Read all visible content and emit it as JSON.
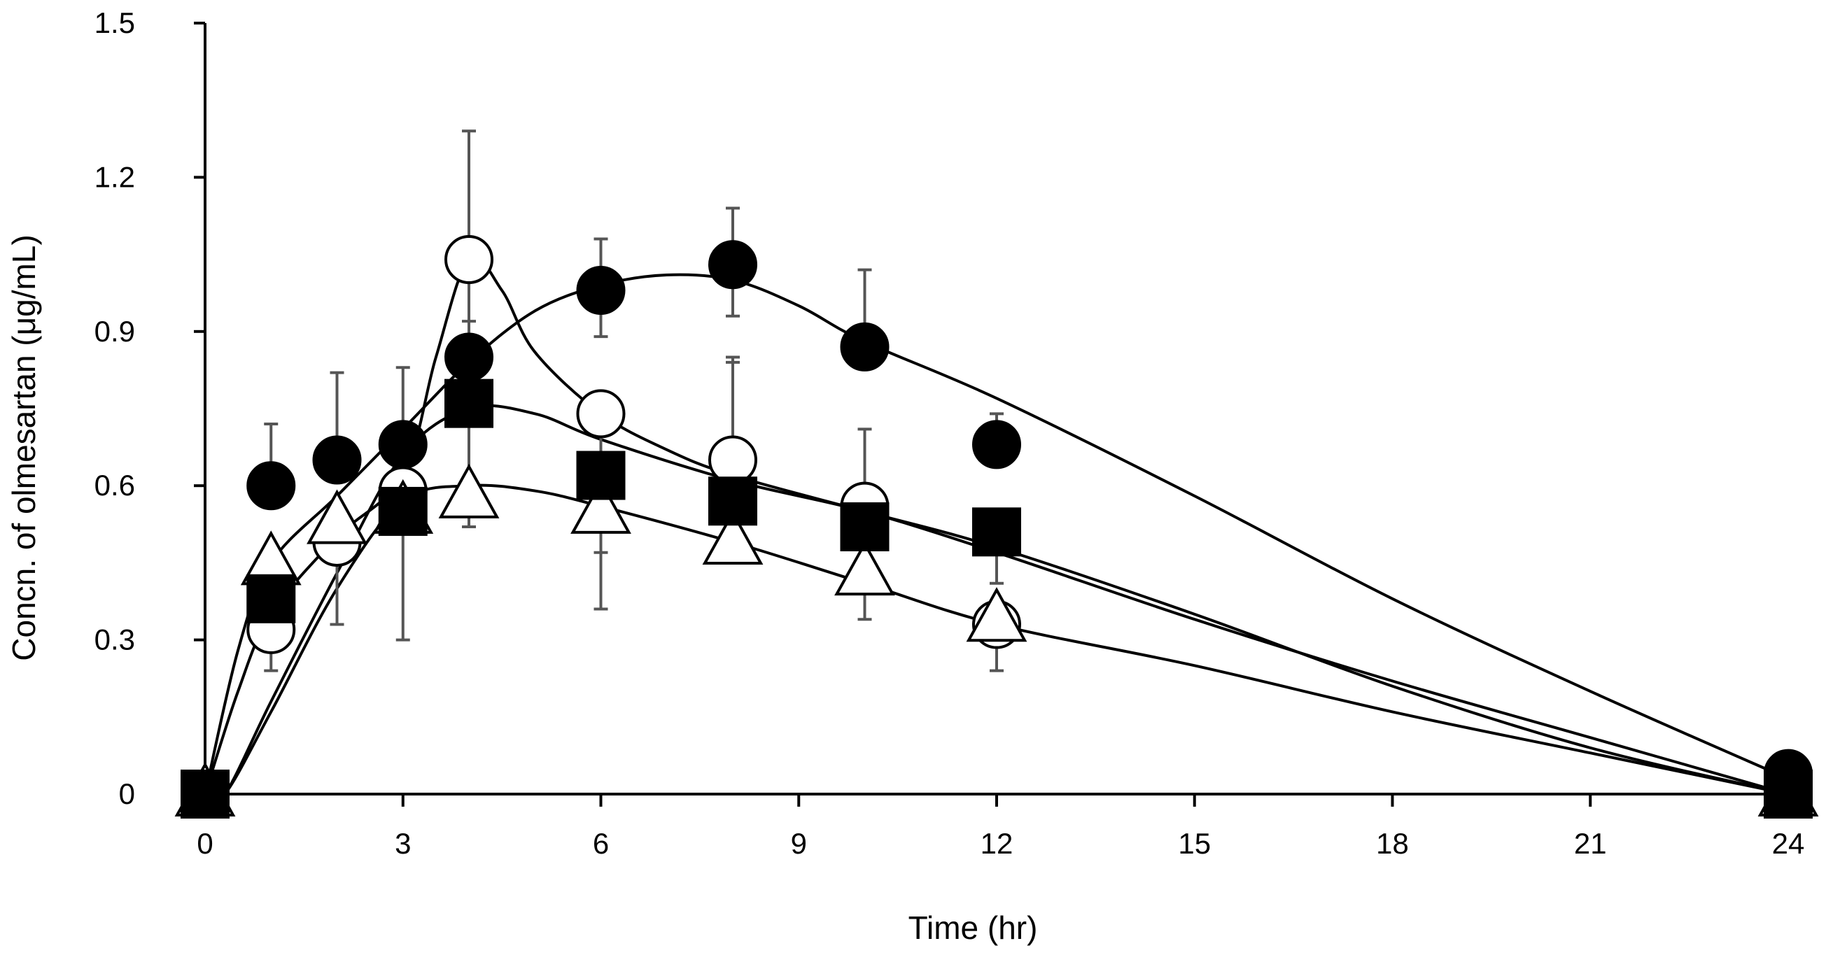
{
  "chart_data": {
    "type": "scatter",
    "title": "",
    "xlabel": "Time (hr)",
    "ylabel": "Concn. of olmesartan (μg/mL)",
    "xlim": [
      0,
      24
    ],
    "ylim": [
      0,
      1.5
    ],
    "x_ticks": [
      0,
      3,
      6,
      9,
      12,
      15,
      18,
      21,
      24
    ],
    "x_tick_labels": [
      "0",
      "3",
      "6",
      "9",
      "12",
      "15",
      "18",
      "21",
      "24"
    ],
    "y_ticks": [
      0,
      0.3,
      0.6,
      0.9,
      1.2,
      1.5
    ],
    "y_tick_labels": [
      "0",
      "0.3",
      "0.6",
      "0.9",
      "1.2",
      "1.5"
    ],
    "grid": false,
    "series": [
      {
        "name": "filled-circle",
        "marker": "circle",
        "fill": "#000000",
        "x": [
          0,
          1,
          2,
          3,
          4,
          6,
          8,
          10,
          12,
          24
        ],
        "y": [
          0,
          0.6,
          0.65,
          0.68,
          0.85,
          0.98,
          1.03,
          0.87,
          0.68,
          0.04
        ],
        "error_upper": [
          null,
          0.72,
          0.82,
          0.83,
          0.92,
          1.08,
          1.14,
          1.02,
          0.74,
          null
        ],
        "error_lower": [
          null,
          null,
          null,
          null,
          null,
          0.89,
          0.93,
          null,
          null,
          null
        ],
        "fit_curve": [
          [
            0,
            0
          ],
          [
            0.5,
            0.28
          ],
          [
            1,
            0.45
          ],
          [
            2,
            0.58
          ],
          [
            3,
            0.71
          ],
          [
            4,
            0.84
          ],
          [
            5,
            0.94
          ],
          [
            6,
            0.99
          ],
          [
            7,
            1.01
          ],
          [
            8,
            1.0
          ],
          [
            9,
            0.95
          ],
          [
            10,
            0.88
          ],
          [
            12,
            0.77
          ],
          [
            15,
            0.58
          ],
          [
            18,
            0.38
          ],
          [
            21,
            0.2
          ],
          [
            24,
            0.03
          ]
        ]
      },
      {
        "name": "open-circle",
        "marker": "circle",
        "fill": "#ffffff",
        "x": [
          0,
          1,
          2,
          3,
          4,
          6,
          8,
          10,
          12,
          24
        ],
        "y": [
          0,
          0.32,
          0.49,
          0.59,
          1.04,
          0.74,
          0.65,
          0.56,
          0.33,
          0.0
        ],
        "error_upper": [
          null,
          null,
          null,
          null,
          1.29,
          null,
          0.85,
          null,
          null,
          null
        ],
        "error_lower": [
          null,
          0.24,
          0.33,
          null,
          0.52,
          0.47,
          null,
          0.34,
          0.24,
          null
        ],
        "fit_curve": [
          [
            0,
            0
          ],
          [
            0.5,
            0.2
          ],
          [
            1,
            0.35
          ],
          [
            2,
            0.5
          ],
          [
            3,
            0.62
          ],
          [
            3.5,
            0.85
          ],
          [
            4,
            1.04
          ],
          [
            4.5,
            0.98
          ],
          [
            5,
            0.86
          ],
          [
            6,
            0.74
          ],
          [
            7,
            0.67
          ],
          [
            8,
            0.62
          ],
          [
            10,
            0.55
          ],
          [
            12,
            0.48
          ],
          [
            15,
            0.35
          ],
          [
            18,
            0.21
          ],
          [
            21,
            0.09
          ],
          [
            24,
            0.0
          ]
        ]
      },
      {
        "name": "filled-square",
        "marker": "square",
        "fill": "#000000",
        "x": [
          0,
          1,
          3,
          4,
          6,
          8,
          10,
          12,
          24
        ],
        "y": [
          0,
          0.38,
          0.55,
          0.76,
          0.62,
          0.57,
          0.52,
          0.51,
          0.0
        ],
        "error_upper": [
          null,
          null,
          null,
          0.85,
          null,
          0.84,
          0.71,
          null,
          null
        ],
        "error_lower": [
          null,
          null,
          0.3,
          null,
          0.36,
          null,
          null,
          0.41,
          null
        ],
        "fit_curve": [
          [
            0,
            0
          ],
          [
            0.3,
            0.0
          ],
          [
            1,
            0.18
          ],
          [
            2,
            0.43
          ],
          [
            3,
            0.66
          ],
          [
            4,
            0.75
          ],
          [
            5,
            0.74
          ],
          [
            6,
            0.69
          ],
          [
            8,
            0.61
          ],
          [
            10,
            0.55
          ],
          [
            12,
            0.47
          ],
          [
            15,
            0.34
          ],
          [
            18,
            0.22
          ],
          [
            21,
            0.11
          ],
          [
            24,
            0.0
          ]
        ]
      },
      {
        "name": "open-triangle",
        "marker": "triangle",
        "fill": "#ffffff",
        "x": [
          0,
          1,
          2,
          3,
          4,
          6,
          8,
          10,
          12,
          24
        ],
        "y": [
          0,
          0.45,
          0.53,
          0.55,
          0.58,
          0.55,
          0.49,
          0.43,
          0.34,
          0.0
        ],
        "error_upper": [
          null,
          null,
          null,
          null,
          null,
          null,
          null,
          null,
          null,
          null
        ],
        "error_lower": [
          null,
          null,
          null,
          null,
          null,
          null,
          null,
          null,
          null,
          null
        ],
        "fit_curve": [
          [
            0,
            0
          ],
          [
            0.3,
            0.0
          ],
          [
            1,
            0.16
          ],
          [
            2,
            0.4
          ],
          [
            3,
            0.57
          ],
          [
            4,
            0.6
          ],
          [
            5,
            0.59
          ],
          [
            6,
            0.56
          ],
          [
            8,
            0.49
          ],
          [
            10,
            0.41
          ],
          [
            12,
            0.33
          ],
          [
            15,
            0.25
          ],
          [
            18,
            0.16
          ],
          [
            21,
            0.08
          ],
          [
            24,
            0.0
          ]
        ]
      }
    ]
  }
}
